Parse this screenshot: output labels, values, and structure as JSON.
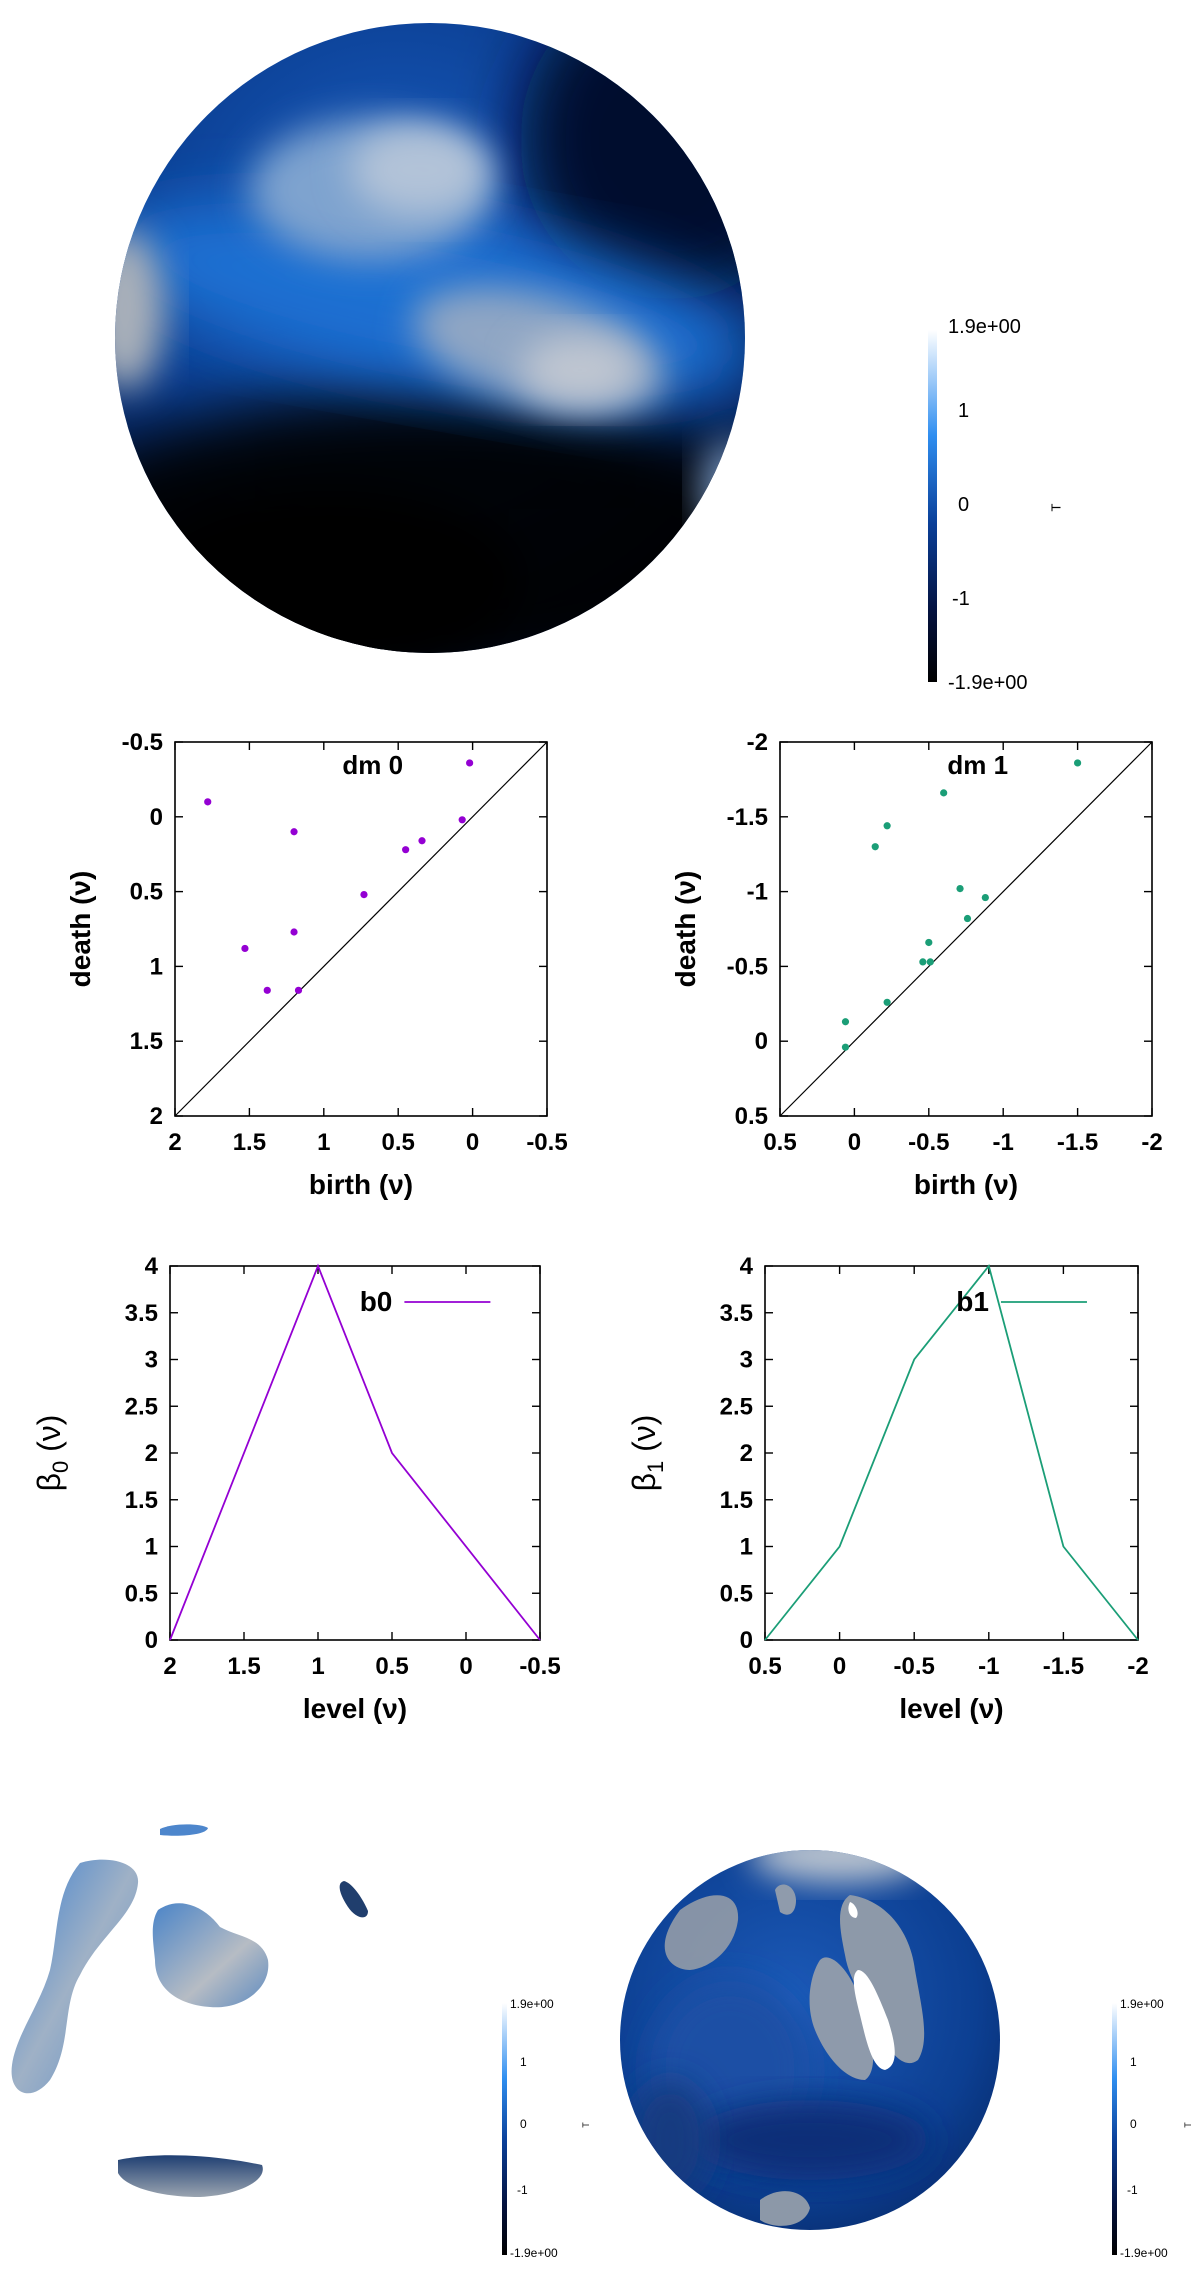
{
  "colorbar_main": {
    "max": "1.9e+00",
    "ticks": [
      "1",
      "0",
      "-1"
    ],
    "min": "-1.9e+00",
    "var": "T"
  },
  "colorbar_small_left": {
    "max": "1.9e+00",
    "ticks": [
      "1",
      "0",
      "-1"
    ],
    "min": "-1.9e+00",
    "var": "T"
  },
  "colorbar_small_right": {
    "max": "1.9e+00",
    "ticks": [
      "1",
      "0",
      "-1"
    ],
    "min": "-1.9e+00",
    "var": "T"
  },
  "colors": {
    "dm0": "#9400D3",
    "dm1": "#1B9E77",
    "sphere_dark": "#000000",
    "sphere_mid": "#0a4fb0",
    "sphere_light": "#c0c8d6"
  },
  "chart_data": [
    {
      "type": "scatter",
      "title": "",
      "legend": "dm 0",
      "xlabel": "birth (ν)",
      "ylabel": "death (ν)",
      "xlim": [
        2,
        -0.5
      ],
      "ylim": [
        2,
        -0.5
      ],
      "xticks": [
        "2",
        "1.5",
        "1",
        "0.5",
        "0",
        "-0.5"
      ],
      "yticks": [
        "-0.5",
        "0",
        "0.5",
        "1",
        "1.5",
        "2"
      ],
      "diagonal": true,
      "points": [
        {
          "x": 1.78,
          "y": -0.1
        },
        {
          "x": 1.2,
          "y": 0.1
        },
        {
          "x": 0.02,
          "y": -0.36
        },
        {
          "x": 0.07,
          "y": 0.02
        },
        {
          "x": 0.34,
          "y": 0.16
        },
        {
          "x": 0.45,
          "y": 0.22
        },
        {
          "x": 0.73,
          "y": 0.52
        },
        {
          "x": 1.2,
          "y": 0.77
        },
        {
          "x": 1.53,
          "y": 0.88
        },
        {
          "x": 1.38,
          "y": 1.16
        },
        {
          "x": 1.17,
          "y": 1.16
        }
      ]
    },
    {
      "type": "scatter",
      "title": "",
      "legend": "dm 1",
      "xlabel": "birth (ν)",
      "ylabel": "death (ν)",
      "xlim": [
        0.5,
        -2
      ],
      "ylim": [
        0.5,
        -2
      ],
      "xticks": [
        "0.5",
        "0",
        "-0.5",
        "-1",
        "-1.5",
        "-2"
      ],
      "yticks": [
        "-2",
        "-1.5",
        "-1",
        "-0.5",
        "0",
        "0.5"
      ],
      "diagonal": true,
      "points": [
        {
          "x": -1.5,
          "y": -1.86
        },
        {
          "x": -0.6,
          "y": -1.66
        },
        {
          "x": -0.22,
          "y": -1.44
        },
        {
          "x": -0.14,
          "y": -1.3
        },
        {
          "x": -0.71,
          "y": -1.02
        },
        {
          "x": -0.88,
          "y": -0.96
        },
        {
          "x": -0.76,
          "y": -0.82
        },
        {
          "x": -0.5,
          "y": -0.66
        },
        {
          "x": -0.46,
          "y": -0.53
        },
        {
          "x": -0.51,
          "y": -0.53
        },
        {
          "x": -0.22,
          "y": -0.26
        },
        {
          "x": 0.06,
          "y": -0.13
        },
        {
          "x": 0.06,
          "y": 0.04
        }
      ]
    },
    {
      "type": "line",
      "title": "",
      "legend": "b0",
      "xlabel": "level (ν)",
      "ylabel": "β0 (ν)",
      "xlim": [
        2,
        -0.5
      ],
      "ylim": [
        0,
        4
      ],
      "xticks": [
        "2",
        "1.5",
        "1",
        "0.5",
        "0",
        "-0.5"
      ],
      "yticks": [
        "0",
        "0.5",
        "1",
        "1.5",
        "2",
        "2.5",
        "3",
        "3.5",
        "4"
      ],
      "x": [
        2,
        1,
        0.5,
        -0.5
      ],
      "y": [
        0,
        4,
        2,
        0
      ]
    },
    {
      "type": "line",
      "title": "",
      "legend": "b1",
      "xlabel": "level (ν)",
      "ylabel": "β1 (ν)",
      "xlim": [
        0.5,
        -2
      ],
      "ylim": [
        0,
        4
      ],
      "xticks": [
        "0.5",
        "0",
        "-0.5",
        "-1",
        "-1.5",
        "-2"
      ],
      "yticks": [
        "0",
        "0.5",
        "1",
        "1.5",
        "2",
        "2.5",
        "3",
        "3.5",
        "4"
      ],
      "x": [
        0.5,
        0,
        -0.5,
        -1,
        -1.5,
        -2
      ],
      "y": [
        0,
        1,
        3,
        4,
        1,
        0
      ]
    }
  ]
}
